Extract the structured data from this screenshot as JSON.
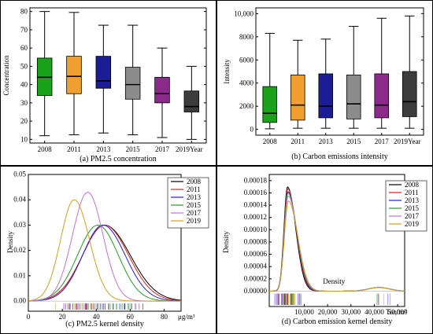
{
  "chart_data": [
    {
      "type": "box",
      "panel": "(a)",
      "caption": "(a) PM2.5 concentration",
      "ylabel": "Concentration",
      "xlabel_suffix": "Year",
      "categories": [
        "2008",
        "2011",
        "2013",
        "2015",
        "2017",
        "2019"
      ],
      "ylim": [
        8,
        82
      ],
      "yticks": [
        10,
        20,
        30,
        40,
        50,
        60,
        70,
        80
      ],
      "boxes": [
        {
          "year": "2008",
          "min": 12,
          "q1": 34,
          "median": 44,
          "q3": 54.5,
          "max": 80,
          "color": "#1aa31a"
        },
        {
          "year": "2011",
          "min": 12.5,
          "q1": 35,
          "median": 44.5,
          "q3": 55.5,
          "max": 79.5,
          "color": "#f0a030"
        },
        {
          "year": "2013",
          "min": 13.5,
          "q1": 38,
          "median": 42,
          "q3": 55.5,
          "max": 72.5,
          "color": "#1c1c96"
        },
        {
          "year": "2015",
          "min": 12.5,
          "q1": 32,
          "median": 40,
          "q3": 49.5,
          "max": 72.5,
          "color": "#8c8c8c"
        },
        {
          "year": "2017",
          "min": 11,
          "q1": 30,
          "median": 35,
          "q3": 44,
          "max": 60,
          "color": "#8b2a8b"
        },
        {
          "year": "2019",
          "min": 10,
          "q1": 25,
          "median": 28,
          "q3": 36.5,
          "max": 50,
          "color": "#3c3c3c"
        }
      ]
    },
    {
      "type": "box",
      "panel": "(b)",
      "caption": "(b) Carbon emissions intensity",
      "ylabel": "Intensity",
      "xlabel_suffix": "Year",
      "categories": [
        "2008",
        "2011",
        "2013",
        "2015",
        "2017",
        "2019"
      ],
      "ylim": [
        -500,
        10500
      ],
      "yticks": [
        0,
        2000,
        4000,
        6000,
        8000,
        10000
      ],
      "ytick_labels": [
        "0",
        "2000",
        "4000",
        "6000",
        "8000",
        "10,000"
      ],
      "boxes": [
        {
          "year": "2008",
          "min": 50,
          "q1": 600,
          "median": 1400,
          "q3": 3700,
          "max": 8300,
          "color": "#1aa31a"
        },
        {
          "year": "2011",
          "min": 100,
          "q1": 800,
          "median": 2100,
          "q3": 4700,
          "max": 7700,
          "color": "#f0a030"
        },
        {
          "year": "2013",
          "min": 100,
          "q1": 1000,
          "median": 2000,
          "q3": 4800,
          "max": 7800,
          "color": "#1c1c96"
        },
        {
          "year": "2015",
          "min": 100,
          "q1": 900,
          "median": 2200,
          "q3": 4700,
          "max": 8900,
          "color": "#8c8c8c"
        },
        {
          "year": "2017",
          "min": 100,
          "q1": 1000,
          "median": 2100,
          "q3": 4800,
          "max": 9600,
          "color": "#8b2a8b"
        },
        {
          "year": "2019",
          "min": 100,
          "q1": 1100,
          "median": 2400,
          "q3": 5000,
          "max": 9800,
          "color": "#3c3c3c"
        }
      ]
    },
    {
      "type": "line",
      "panel": "(c)",
      "caption": "(c) PM2.5 kernel density",
      "ylabel": "Density",
      "xunit": "μg/m³",
      "xlim": [
        0,
        90
      ],
      "ylim": [
        -0.004,
        0.05
      ],
      "xticks": [
        0,
        20,
        40,
        60,
        80
      ],
      "yticks": [
        0,
        0.01,
        0.02,
        0.03,
        0.04,
        0.05
      ],
      "ytick_labels": [
        "0.00",
        "0.01",
        "0.02",
        "0.03",
        "0.04",
        "0.05"
      ],
      "legend_position": "top-right",
      "rug_color_count": 6,
      "series": [
        {
          "name": "2008",
          "color": "#000000",
          "peak_x": 45,
          "peak_y": 0.03,
          "sd_left": 13,
          "sd_right": 15
        },
        {
          "name": "2011",
          "color": "#e02020",
          "peak_x": 45,
          "peak_y": 0.03,
          "sd_left": 13,
          "sd_right": 14
        },
        {
          "name": "2013",
          "color": "#2020e0",
          "peak_x": 44,
          "peak_y": 0.03,
          "sd_left": 12,
          "sd_right": 13
        },
        {
          "name": "2015",
          "color": "#20a020",
          "peak_x": 41,
          "peak_y": 0.03,
          "sd_left": 12,
          "sd_right": 12
        },
        {
          "name": "2017",
          "color": "#c070e0",
          "peak_x": 35,
          "peak_y": 0.043,
          "sd_left": 9,
          "sd_right": 9
        },
        {
          "name": "2019",
          "color": "#d4a017",
          "peak_x": 27,
          "peak_y": 0.04,
          "sd_left": 8,
          "sd_right": 9
        }
      ]
    },
    {
      "type": "line",
      "panel": "(d)",
      "caption": "(d) Carbon emission kernel density",
      "ylabel": "Density",
      "xunit": "Ton/m²",
      "xlim": [
        -5000,
        53000
      ],
      "ylim": [
        -2.5e-05,
        0.00019
      ],
      "xticks": [
        10000,
        20000,
        30000,
        40000,
        50000
      ],
      "xtick_labels": [
        "10,000",
        "20,000",
        "30,000",
        "40,000",
        "50,000"
      ],
      "yticks": [
        0,
        2e-05,
        4e-05,
        6e-05,
        8e-05,
        0.0001,
        0.00012,
        0.00014,
        0.00016,
        0.00018
      ],
      "ytick_labels": [
        "0.00000",
        "0.00002",
        "0.00004",
        "0.00006",
        "0.00008",
        "0.00010",
        "0.00012",
        "0.00014",
        "0.00016",
        "0.00018"
      ],
      "annotation": "Density",
      "legend_position": "top-right",
      "series": [
        {
          "name": "2008",
          "color": "#000000",
          "peak_x": 2800,
          "peak_y": 0.00017,
          "sd_left": 1500,
          "sd_right": 3500
        },
        {
          "name": "2011",
          "color": "#e02020",
          "peak_x": 2900,
          "peak_y": 0.000167,
          "sd_left": 1500,
          "sd_right": 3600
        },
        {
          "name": "2013",
          "color": "#2020e0",
          "peak_x": 3000,
          "peak_y": 0.000162,
          "sd_left": 1550,
          "sd_right": 3700
        },
        {
          "name": "2015",
          "color": "#20a020",
          "peak_x": 3000,
          "peak_y": 0.00016,
          "sd_left": 1600,
          "sd_right": 3800
        },
        {
          "name": "2017",
          "color": "#c070e0",
          "peak_x": 3100,
          "peak_y": 0.000155,
          "sd_left": 1650,
          "sd_right": 3900
        },
        {
          "name": "2019",
          "color": "#d4a017",
          "peak_x": 3200,
          "peak_y": 0.000147,
          "sd_left": 1700,
          "sd_right": 4000
        }
      ],
      "secondary_bump": {
        "x": 42000,
        "y": 6e-06
      }
    }
  ]
}
